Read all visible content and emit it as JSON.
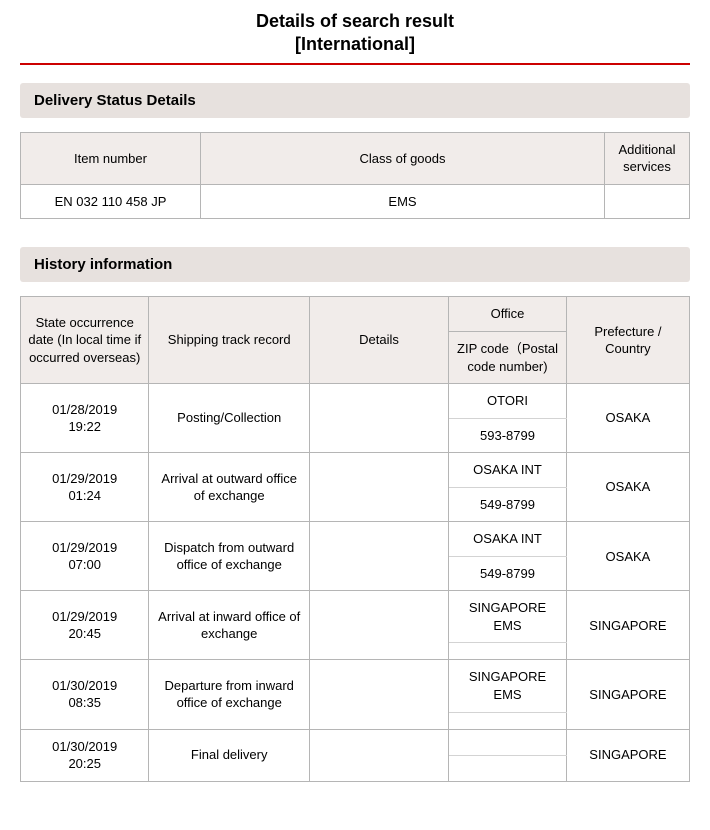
{
  "page_title_line1": "Details of search result",
  "page_title_line2": "[International]",
  "sections": {
    "status_header": "Delivery Status Details",
    "history_header": "History information"
  },
  "status_table": {
    "columns": [
      "Item number",
      "Class of goods",
      "Additional services"
    ],
    "row": {
      "item_number": "EN 032 110 458 JP",
      "class": "EMS",
      "services": ""
    }
  },
  "history_table": {
    "columns": {
      "date": "State occurrence date (In local time if occurred overseas)",
      "track": "Shipping track record",
      "details": "Details",
      "office": "Office",
      "zip": "ZIP code（Postal code number)",
      "pref": "Prefecture / Country"
    },
    "rows": [
      {
        "date": "01/28/2019 19:22",
        "track": "Posting/Collection",
        "details": "",
        "office": "OTORI",
        "zip": "593-8799",
        "pref": "OSAKA"
      },
      {
        "date": "01/29/2019 01:24",
        "track": "Arrival at outward office of exchange",
        "details": "",
        "office": "OSAKA INT",
        "zip": "549-8799",
        "pref": "OSAKA"
      },
      {
        "date": "01/29/2019 07:00",
        "track": "Dispatch from outward office of exchange",
        "details": "",
        "office": "OSAKA INT",
        "zip": "549-8799",
        "pref": "OSAKA"
      },
      {
        "date": "01/29/2019 20:45",
        "track": "Arrival at inward office of exchange",
        "details": "",
        "office": "SINGAPORE EMS",
        "zip": "",
        "pref": "SINGAPORE"
      },
      {
        "date": "01/30/2019 08:35",
        "track": "Departure from inward office of exchange",
        "details": "",
        "office": "SINGAPORE EMS",
        "zip": "",
        "pref": "SINGAPORE"
      },
      {
        "date": "01/30/2019 20:25",
        "track": "Final delivery",
        "details": "",
        "office": "",
        "zip": "",
        "pref": "SINGAPORE"
      }
    ]
  },
  "style": {
    "accent_color": "#cc0000",
    "section_bg": "#e7e1de",
    "th_bg": "#f1ecea",
    "border_color": "#b5b5b5",
    "background_color": "#ffffff",
    "text_color": "#000000",
    "title_fontsize": 18,
    "body_fontsize": 13
  }
}
